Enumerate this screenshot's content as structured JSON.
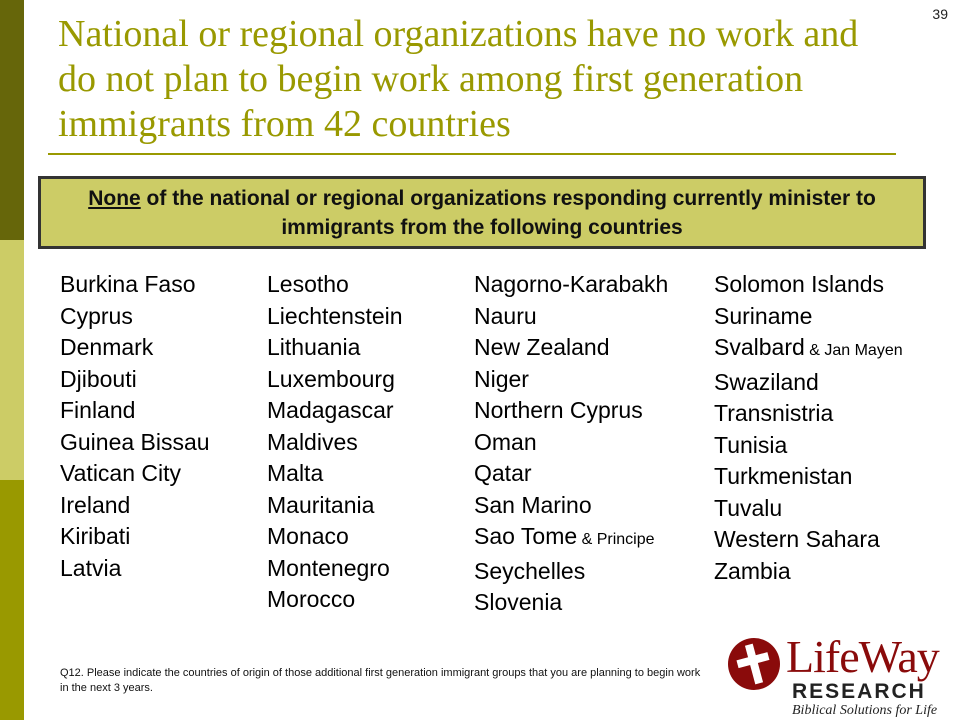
{
  "slide_number": "39",
  "title": "National or regional organizations have no work and do not plan to begin work among first generation immigrants from 42 countries",
  "callout": {
    "emphasis": "None",
    "text": " of the national or regional organizations responding currently minister to immigrants from the following countries"
  },
  "countries": {
    "col1": [
      "Burkina Faso",
      "Cyprus",
      "Denmark",
      "Djibouti",
      "Finland",
      "Guinea Bissau",
      "Vatican City",
      "Ireland",
      "Kiribati",
      "Latvia"
    ],
    "col2": [
      "Lesotho",
      "Liechtenstein",
      "Lithuania",
      "Luxembourg",
      "Madagascar",
      "Maldives",
      "Malta",
      "Mauritania",
      "Monaco",
      "Montenegro",
      "Morocco"
    ],
    "col3": [
      "Nagorno-Karabakh",
      "Nauru",
      "New Zealand",
      "Niger",
      "Northern Cyprus",
      "Oman",
      "Qatar",
      "San Marino",
      "Sao Tome",
      "Seychelles",
      "Slovenia"
    ],
    "col3_sao_tome_suffix": " & Principe",
    "col4": [
      "Solomon Islands",
      "Suriname",
      "Svalbard",
      "Swaziland",
      "Transnistria",
      "Tunisia",
      "Turkmenistan",
      "Tuvalu",
      "Western Sahara",
      "Zambia"
    ],
    "col4_svalbard_suffix": " & Jan Mayen"
  },
  "footnote": "Q12. Please indicate the countries of origin of those additional first generation immigrant groups that you are planning to begin work in the next 3 years.",
  "logo": {
    "name": "LifeWay",
    "research": "RESEARCH",
    "tagline": "Biblical Solutions for Life"
  },
  "colors": {
    "title": "#999900",
    "callout_bg": "#cccc66",
    "logo_red": "#8a0b0b"
  }
}
